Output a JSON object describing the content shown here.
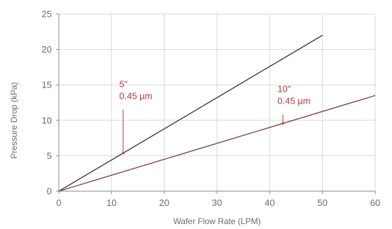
{
  "chart_data": {
    "type": "line",
    "xlabel": "Wafer Flow Rate (LPM)",
    "ylabel": "Pressure Drop (kPa)",
    "xlim": [
      0,
      60
    ],
    "ylim": [
      0,
      25
    ],
    "x_ticks": [
      0,
      10,
      20,
      30,
      40,
      50,
      60
    ],
    "y_ticks": [
      0,
      5,
      10,
      15,
      20,
      25
    ],
    "grid": true,
    "series": [
      {
        "name": "5\" 0.45 µm",
        "x": [
          0,
          50
        ],
        "y": [
          0,
          22
        ],
        "color": "#3a3f46"
      },
      {
        "name": "10\" 0.45 µm",
        "x": [
          0,
          60
        ],
        "y": [
          0,
          13.5
        ],
        "color": "#7a4a3a"
      }
    ],
    "annotations": [
      {
        "lines": [
          "5\"",
          "0.45 µm"
        ],
        "series_index": 0,
        "x": 12.2,
        "label_x": 12.0,
        "label_y": 13.5,
        "color": "#b23a3a"
      },
      {
        "lines": [
          "10\"",
          "0.45 µm"
        ],
        "series_index": 1,
        "x": 42.5,
        "label_x": 42.0,
        "label_y": 12.8,
        "color": "#b23a3a"
      }
    ],
    "colors": {
      "grid": "#d9d9d9",
      "axis": "#8a8a8a",
      "tick_text": "#6b6b6b",
      "annotation": "#b23a3a"
    }
  }
}
